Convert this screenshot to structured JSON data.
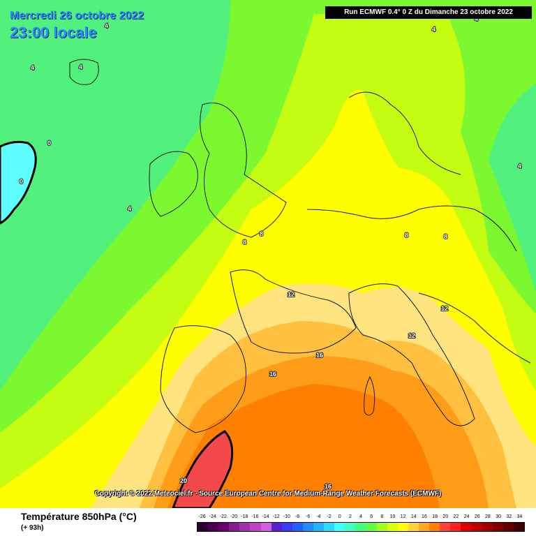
{
  "header": {
    "valid_date": "Mercredi 26 octobre 2022",
    "valid_time": "23:00 locale",
    "run_info": "Run ECMWF 0.4° 0 Z du Dimanche 23 octobre 2022"
  },
  "map": {
    "copyright": "Copyright © 2022 Meteociel.fr - Source European Centre for Medium-Range Weather Forecasts (ECMWF)",
    "isotherm_labels": [
      "4",
      "4",
      "4",
      "4",
      "0",
      "0",
      "4",
      "4",
      "4",
      "8",
      "8",
      "8",
      "8",
      "12",
      "12",
      "12",
      "16",
      "16",
      "16",
      "20"
    ]
  },
  "legend": {
    "title": "Température 850hPa (°C)",
    "forecast_step": "(+ 93h)",
    "scale": [
      {
        "label": "-26",
        "color": "#2a0030"
      },
      {
        "label": "-24",
        "color": "#4a0050"
      },
      {
        "label": "-22",
        "color": "#6a0070"
      },
      {
        "label": "-20",
        "color": "#8a1a8c"
      },
      {
        "label": "-18",
        "color": "#a030a8"
      },
      {
        "label": "-16",
        "color": "#c040c8"
      },
      {
        "label": "-14",
        "color": "#d060e0"
      },
      {
        "label": "-12",
        "color": "#5a1fd0"
      },
      {
        "label": "-10",
        "color": "#3a3aff"
      },
      {
        "label": "-8",
        "color": "#2060ff"
      },
      {
        "label": "-6",
        "color": "#1c8cff"
      },
      {
        "label": "-4",
        "color": "#20b4ff"
      },
      {
        "label": "-2",
        "color": "#30d8ff"
      },
      {
        "label": "0",
        "color": "#40ffff"
      },
      {
        "label": "2",
        "color": "#40ffc0"
      },
      {
        "label": "4",
        "color": "#40ff80"
      },
      {
        "label": "6",
        "color": "#60ff40"
      },
      {
        "label": "8",
        "color": "#a0ff20"
      },
      {
        "label": "10",
        "color": "#d8ff10"
      },
      {
        "label": "12",
        "color": "#ffff00"
      },
      {
        "label": "14",
        "color": "#ffd040"
      },
      {
        "label": "16",
        "color": "#ffa820"
      },
      {
        "label": "18",
        "color": "#ff8000"
      },
      {
        "label": "20",
        "color": "#ff4040"
      },
      {
        "label": "22",
        "color": "#ff2020"
      },
      {
        "label": "24",
        "color": "#e00000"
      },
      {
        "label": "26",
        "color": "#c00000"
      },
      {
        "label": "28",
        "color": "#a00000"
      },
      {
        "label": "30",
        "color": "#800000"
      },
      {
        "label": "32",
        "color": "#600000"
      },
      {
        "label": "34",
        "color": "#400000"
      }
    ]
  }
}
